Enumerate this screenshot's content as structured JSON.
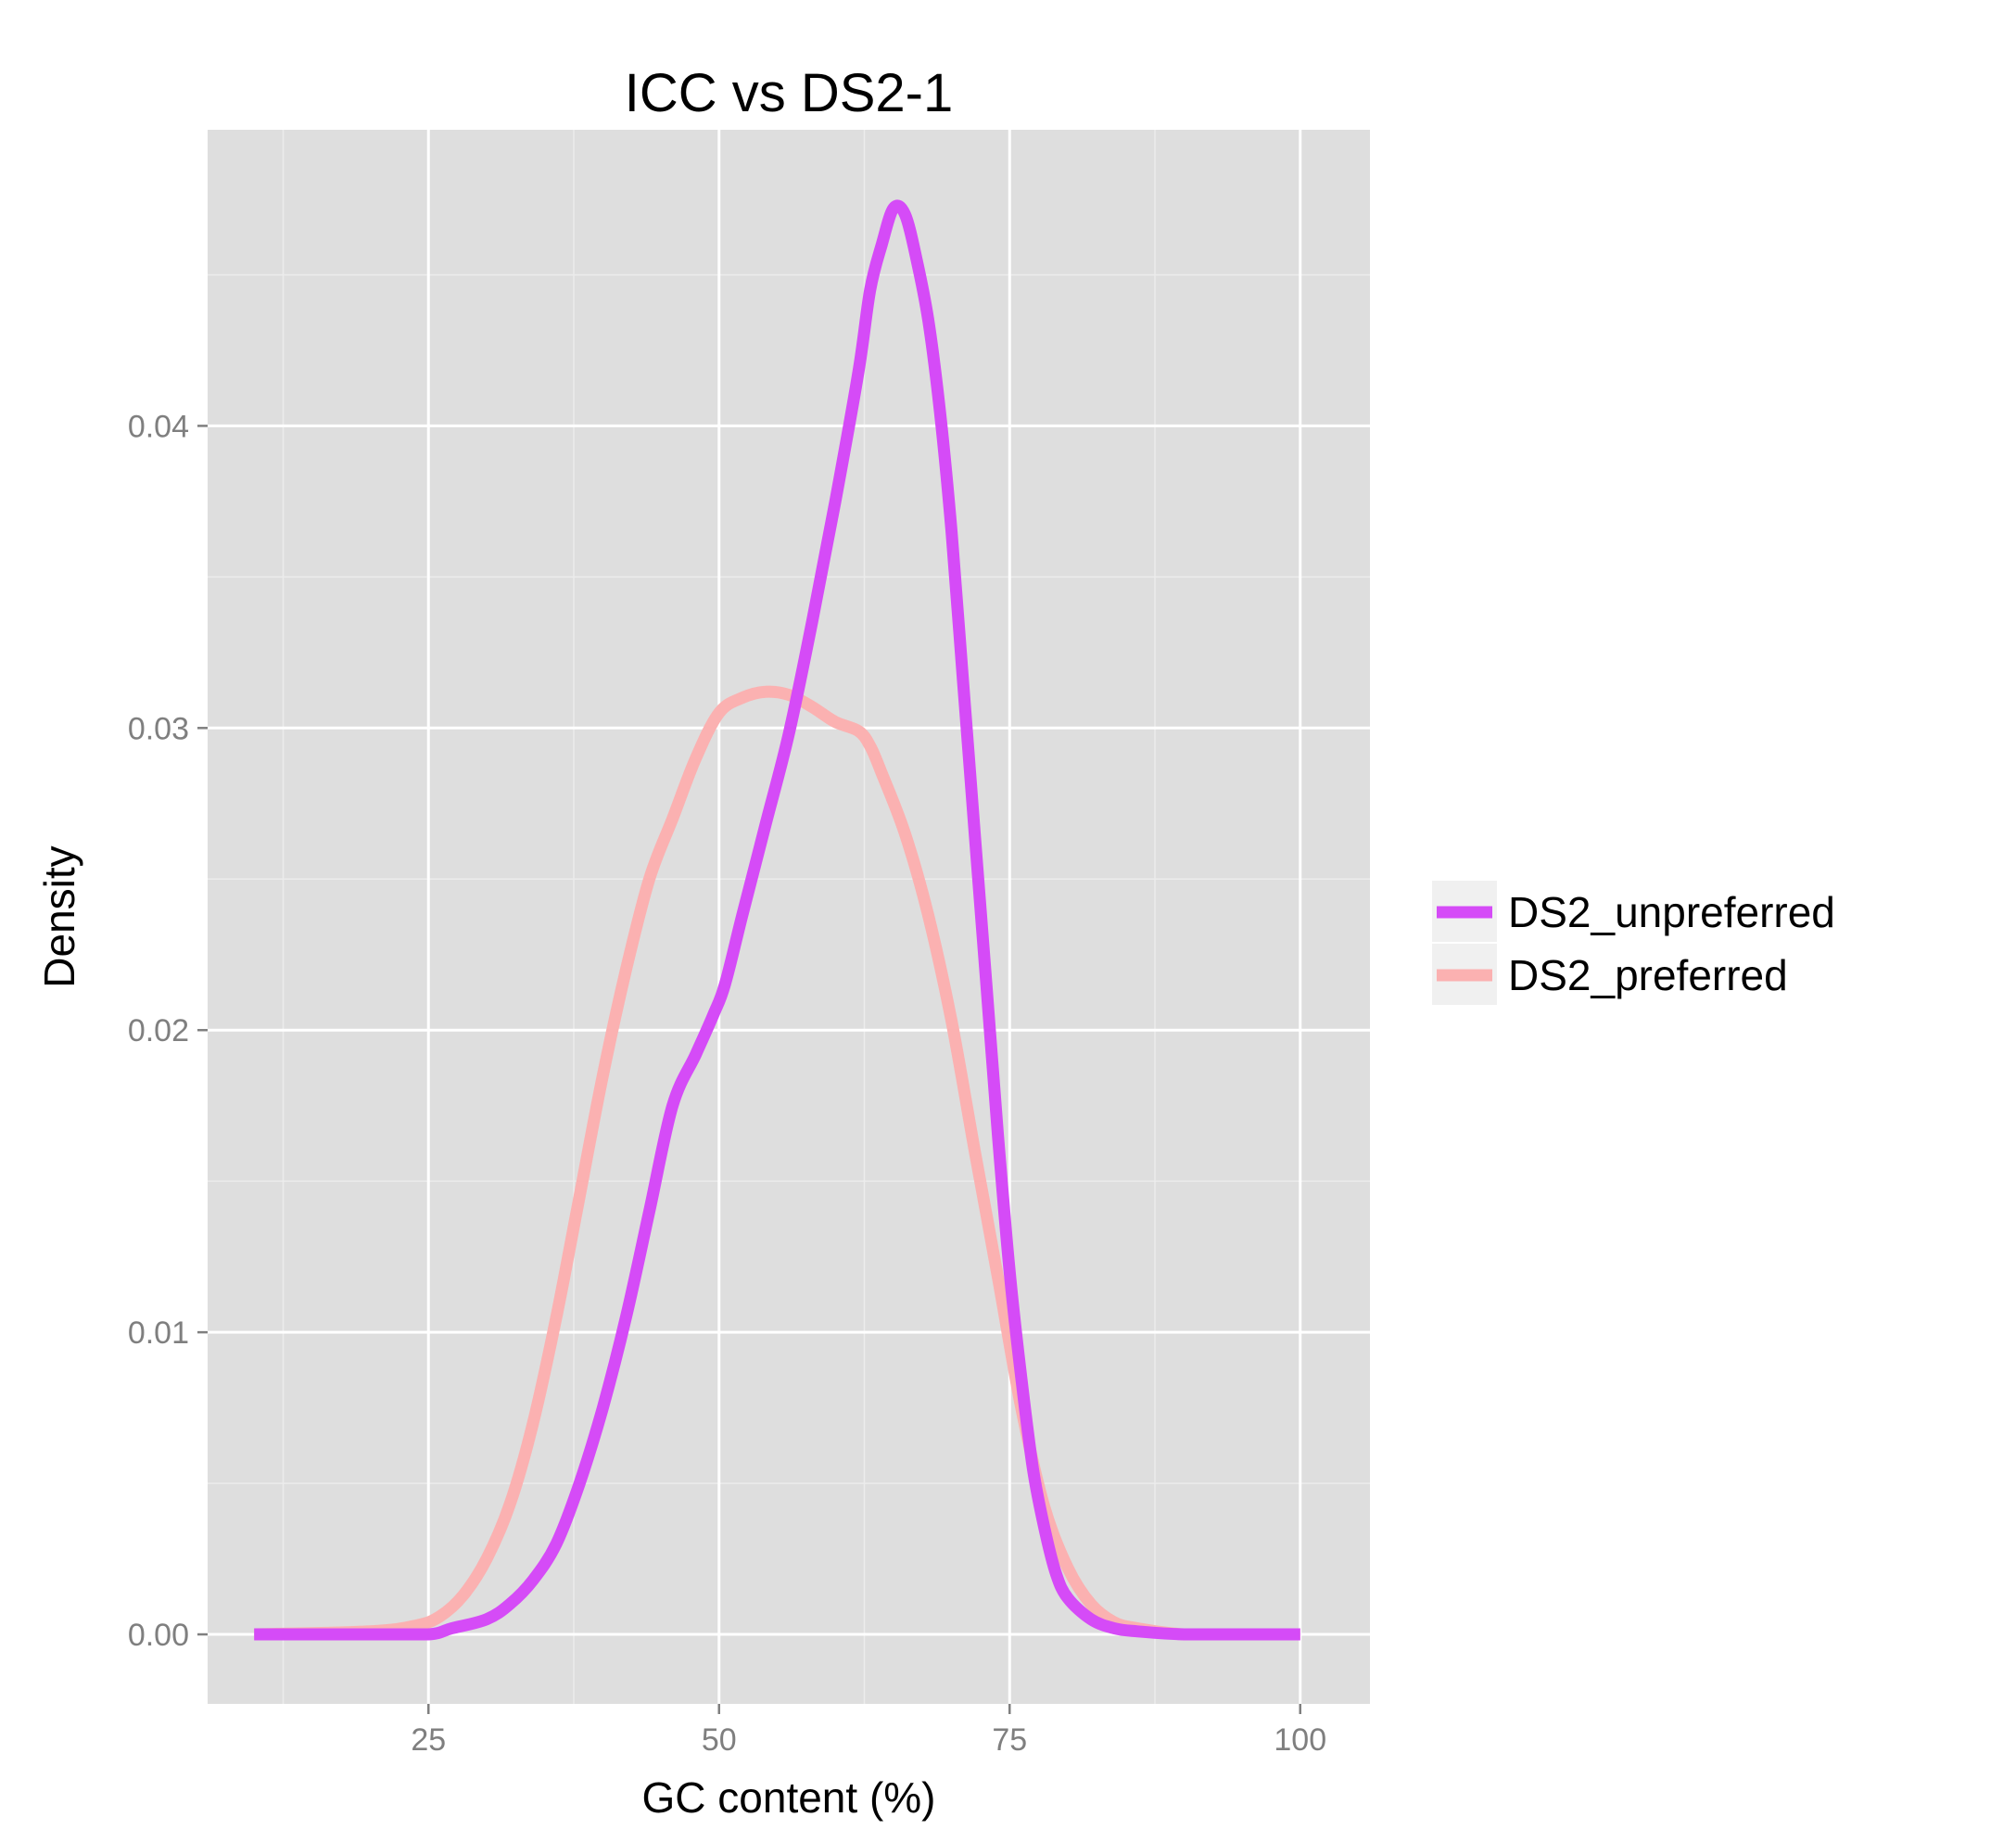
{
  "chart_data": {
    "type": "line",
    "title": "ICC vs DS2-1",
    "xlabel": "GC content (%)",
    "ylabel": "Density",
    "xlim": [
      6,
      106
    ],
    "ylim": [
      -0.0023,
      0.0498
    ],
    "x_ticks": [
      25,
      50,
      75,
      100
    ],
    "x_tick_labels": [
      "25",
      "50",
      "75",
      "100"
    ],
    "x_minor_ticks": [
      12.5,
      37.5,
      62.5,
      87.5
    ],
    "y_ticks": [
      0.0,
      0.01,
      0.02,
      0.03,
      0.04
    ],
    "y_tick_labels": [
      "0.00",
      "0.01",
      "0.02",
      "0.03",
      "0.04"
    ],
    "y_minor_ticks": [
      0.005,
      0.015,
      0.025,
      0.035,
      0.045
    ],
    "grid": true,
    "legend_position": "right",
    "colors": {
      "panel_background": "#dedede",
      "grid": "#ffffff",
      "legend_key_background": "#f0f0f0"
    },
    "series": [
      {
        "name": "DS2_unpreferred",
        "color": "#d54bf7",
        "x": [
          10,
          20,
          25,
          27,
          30,
          32,
          34,
          36,
          38,
          40,
          42,
          44,
          46,
          48,
          49.5,
          50.5,
          52,
          54,
          56,
          58,
          60,
          62,
          63,
          64,
          65,
          66,
          67,
          68,
          69,
          70,
          71,
          72,
          73,
          74,
          75,
          76,
          77,
          78,
          79,
          80,
          82,
          84,
          86,
          90,
          95,
          100
        ],
        "y": [
          0.0,
          0.0,
          0.0,
          0.0002,
          0.0005,
          0.001,
          0.0018,
          0.003,
          0.005,
          0.0075,
          0.0105,
          0.014,
          0.0175,
          0.0192,
          0.0205,
          0.0215,
          0.0238,
          0.0268,
          0.0298,
          0.0335,
          0.0375,
          0.0418,
          0.0445,
          0.046,
          0.0472,
          0.047,
          0.0455,
          0.0435,
          0.0405,
          0.0365,
          0.0315,
          0.0265,
          0.0215,
          0.0165,
          0.012,
          0.0085,
          0.0055,
          0.0035,
          0.002,
          0.0012,
          0.0005,
          0.0002,
          0.0001,
          0.0,
          0.0,
          0.0
        ]
      },
      {
        "name": "DS2_preferred",
        "color": "#fbb1b1",
        "x": [
          10,
          20,
          24,
          26,
          28,
          30,
          32,
          34,
          36,
          38,
          40,
          42,
          44,
          46,
          48,
          50,
          52,
          54,
          56,
          58,
          60,
          62,
          63,
          64,
          66,
          68,
          70,
          72,
          74,
          76,
          78,
          80,
          82,
          84,
          86,
          90,
          95,
          100
        ],
        "y": [
          0.0,
          0.0001,
          0.0003,
          0.0006,
          0.0013,
          0.0025,
          0.0043,
          0.007,
          0.0105,
          0.0145,
          0.0185,
          0.022,
          0.025,
          0.027,
          0.029,
          0.0305,
          0.031,
          0.0312,
          0.0311,
          0.0307,
          0.0302,
          0.0299,
          0.0294,
          0.0285,
          0.0265,
          0.0238,
          0.0203,
          0.016,
          0.0118,
          0.0075,
          0.0042,
          0.0022,
          0.001,
          0.0004,
          0.0002,
          0.0,
          0.0,
          0.0
        ]
      }
    ]
  }
}
